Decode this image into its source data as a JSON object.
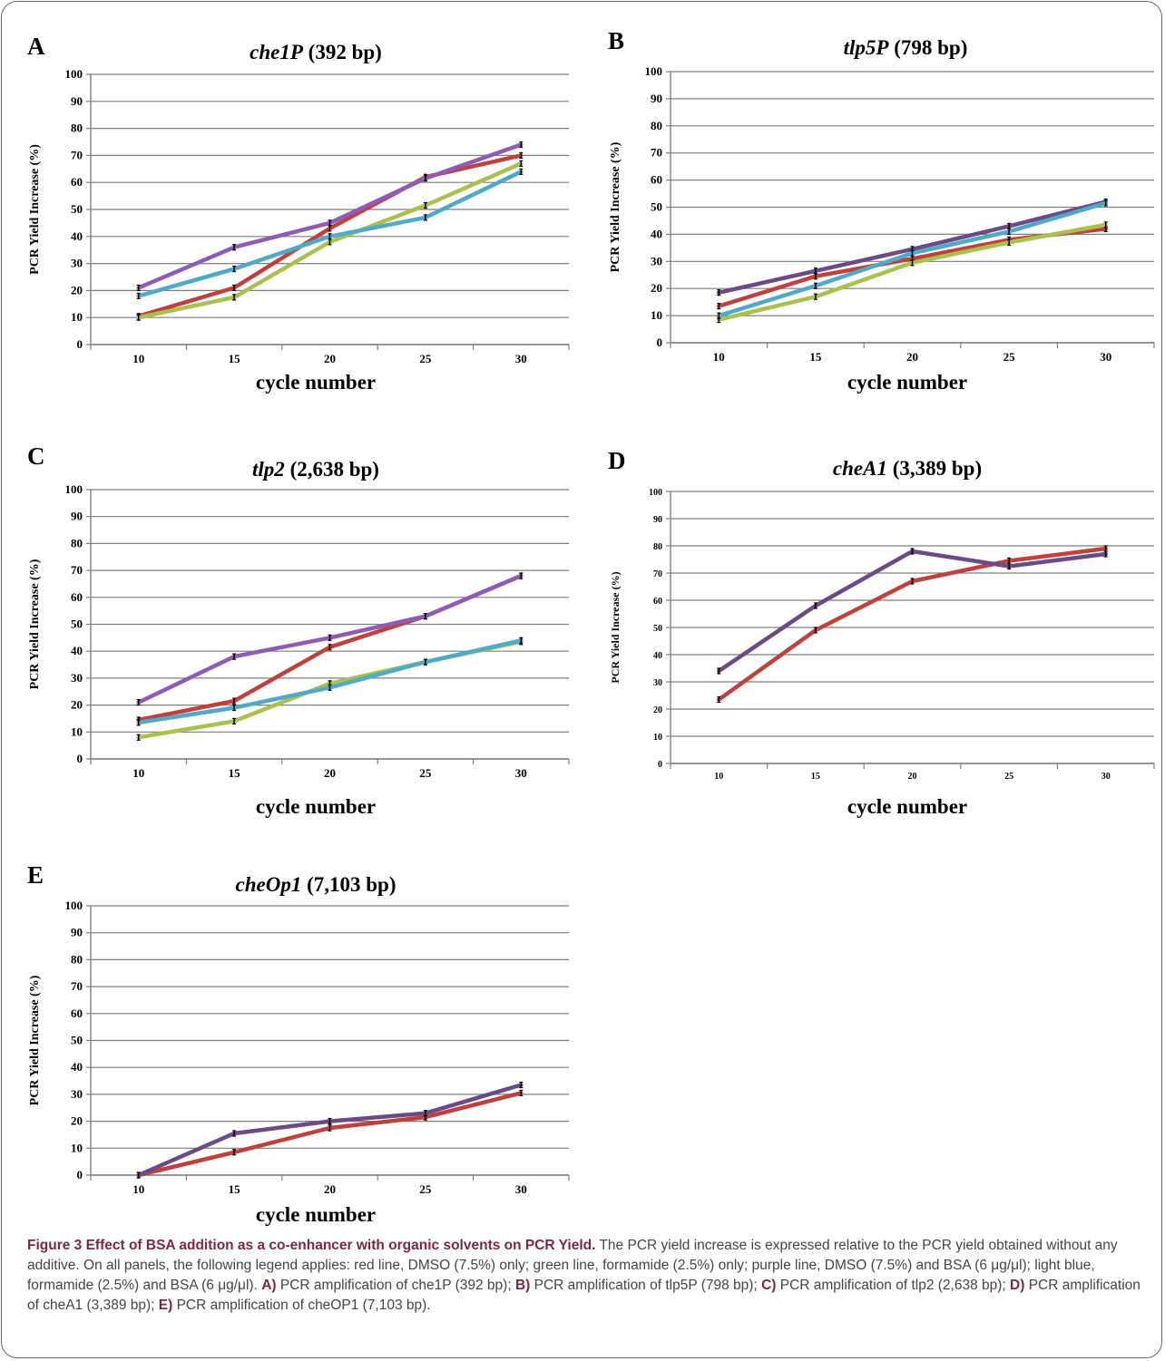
{
  "colors": {
    "red": "#c0413b",
    "green": "#a9c24e",
    "purple": "#8e5cb5",
    "dark_purple": "#6a4b86",
    "blue": "#4eaac6",
    "grid": "#7f7f7f"
  },
  "caption": {
    "title": "Figure 3 Effect of BSA addition as a co-enhancer with organic solvents on PCR Yield.",
    "intro": "The PCR yield increase is expressed relative to the PCR yield obtained without any additive. On all panels, the following legend applies: red line, DMSO (7.5%) only; green line, formamide (2.5%) only; purple line, DMSO (7.5%) and BSA (6 μg/μl); light blue, formamide (2.5%) and BSA (6 μg/μl).",
    "a_tag": "A)",
    "a_text": "PCR amplification of che1P (392 bp);",
    "b_tag": "B)",
    "b_text": "PCR amplification of tlp5P (798 bp);",
    "c_tag": "C)",
    "c_text": "PCR amplification of tlp2 (2,638 bp);",
    "d_tag": "D)",
    "d_text": "PCR amplification of cheA1 (3,389 bp);",
    "e_tag": "E)",
    "e_text": "PCR amplification of cheOP1 (7,103 bp)."
  },
  "chart_data": [
    {
      "type": "line",
      "panel": "A",
      "title_gene": "che1P",
      "title_size": "(392 bp)",
      "xlabel": "cycle number",
      "ylabel": "PCR  Yield Increase (%)",
      "x": [
        10,
        15,
        20,
        25,
        30
      ],
      "ylim": [
        0,
        100
      ],
      "yticks": [
        0,
        10,
        20,
        30,
        40,
        50,
        60,
        70,
        80,
        90,
        100
      ],
      "grid": true,
      "series": [
        {
          "color": "red",
          "values": [
            10.5,
            21,
            43,
            62,
            70
          ]
        },
        {
          "color": "green",
          "values": [
            10,
            17.5,
            38,
            51.5,
            67
          ]
        },
        {
          "color": "purple",
          "values": [
            21,
            36,
            45,
            61.5,
            74
          ]
        },
        {
          "color": "blue",
          "values": [
            18,
            28,
            40,
            47,
            64
          ]
        }
      ]
    },
    {
      "type": "line",
      "panel": "B",
      "title_gene": "tlp5P",
      "title_size": "(798 bp)",
      "xlabel": "cycle number",
      "ylabel": "PCR  Yield Increase (%)",
      "x": [
        10,
        15,
        20,
        25,
        30
      ],
      "ylim": [
        0,
        100
      ],
      "yticks": [
        0,
        10,
        20,
        30,
        40,
        50,
        60,
        70,
        80,
        90,
        100
      ],
      "grid": true,
      "series": [
        {
          "color": "red",
          "values": [
            13.5,
            24.5,
            31,
            38,
            42
          ]
        },
        {
          "color": "green",
          "values": [
            8.5,
            17,
            29.5,
            37,
            43.5
          ]
        },
        {
          "color": "dark_purple",
          "values": [
            18.5,
            26.5,
            34.5,
            43,
            52
          ]
        },
        {
          "color": "blue",
          "values": [
            10,
            21,
            33,
            41,
            51.5
          ]
        }
      ]
    },
    {
      "type": "line",
      "panel": "C",
      "title_gene": "tlp2",
      "title_size": "(2,638 bp)",
      "xlabel": "cycle number",
      "ylabel": "PCR  Yield Increase (%)",
      "x": [
        10,
        15,
        20,
        25,
        30
      ],
      "ylim": [
        0,
        100
      ],
      "yticks": [
        0,
        10,
        20,
        30,
        40,
        50,
        60,
        70,
        80,
        90,
        100
      ],
      "grid": true,
      "series": [
        {
          "color": "red",
          "values": [
            14.5,
            21.5,
            41.5,
            53,
            68
          ]
        },
        {
          "color": "green",
          "values": [
            8,
            14,
            28,
            36,
            43.5
          ]
        },
        {
          "color": "purple",
          "values": [
            21,
            38,
            45,
            53,
            68
          ]
        },
        {
          "color": "blue",
          "values": [
            13.5,
            19,
            26.5,
            36,
            44
          ]
        }
      ]
    },
    {
      "type": "line",
      "panel": "D",
      "title_gene": "cheA1",
      "title_size": "(3,389 bp)",
      "xlabel": "cycle number",
      "ylabel": "PCR  Yield Increase (%)",
      "x": [
        10,
        15,
        20,
        25,
        30
      ],
      "ylim": [
        0,
        100
      ],
      "yticks": [
        0,
        10,
        20,
        30,
        40,
        50,
        60,
        70,
        80,
        90,
        100
      ],
      "grid": true,
      "series": [
        {
          "color": "red",
          "values": [
            23.5,
            49,
            67,
            74.5,
            79
          ]
        },
        {
          "color": "dark_purple",
          "values": [
            34,
            58,
            78,
            72.5,
            77
          ]
        }
      ]
    },
    {
      "type": "line",
      "panel": "E",
      "title_gene": "cheOp1",
      "title_size": "(7,103 bp)",
      "xlabel": "cycle number",
      "ylabel": "PCR  Yield Increase (%)",
      "x": [
        10,
        15,
        20,
        25,
        30
      ],
      "ylim": [
        0,
        100
      ],
      "yticks": [
        0,
        10,
        20,
        30,
        40,
        50,
        60,
        70,
        80,
        90,
        100
      ],
      "grid": true,
      "series": [
        {
          "color": "red",
          "values": [
            0,
            8.5,
            17.5,
            21.5,
            30.5
          ]
        },
        {
          "color": "dark_purple",
          "values": [
            0,
            15.5,
            20,
            23,
            33.5
          ]
        }
      ]
    }
  ]
}
